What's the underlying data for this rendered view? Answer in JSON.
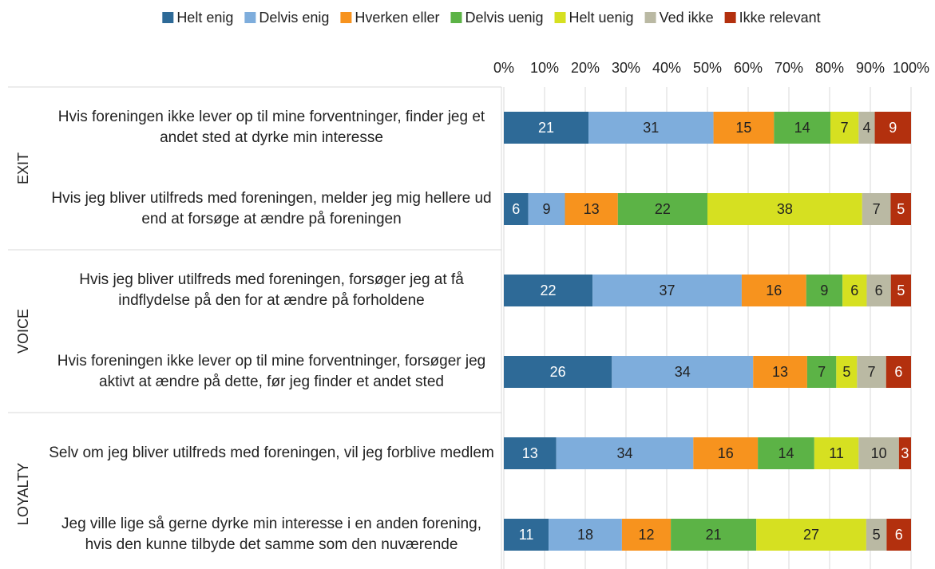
{
  "chart_data": {
    "type": "bar",
    "orientation": "horizontal",
    "stacking": "percent",
    "categories": [
      "Hvis foreningen ikke lever op til mine forventninger, finder jeg et andet sted at dyrke min interesse",
      "Hvis jeg bliver utilfreds med foreningen, melder jeg mig hellere ud end at forsøge at ændre på foreningen",
      "Hvis jeg bliver utilfreds med foreningen, forsøger jeg at få indflydelse på den for at ændre på forholdene",
      "Hvis foreningen ikke lever op til mine forventninger, forsøger jeg aktivt at ændre på dette, før jeg finder et andet sted",
      "Selv om jeg bliver utilfreds med foreningen, vil jeg forblive medlem",
      "Jeg ville lige så gerne dyrke min interesse i en anden forening, hvis den kunne tilbyde det samme som den nuværende"
    ],
    "groups": [
      {
        "label": "EXIT",
        "size": 2
      },
      {
        "label": "VOICE",
        "size": 2
      },
      {
        "label": "LOYALTY",
        "size": 2
      }
    ],
    "series": [
      {
        "name": "Helt enig",
        "color": "#2e6a97",
        "values": [
          21,
          6,
          22,
          26,
          13,
          11
        ]
      },
      {
        "name": "Delvis enig",
        "color": "#7eaddc",
        "values": [
          31,
          9,
          37,
          34,
          34,
          18
        ]
      },
      {
        "name": "Hverken eller",
        "color": "#f7931e",
        "values": [
          15,
          13,
          16,
          13,
          16,
          12
        ]
      },
      {
        "name": "Delvis uenig",
        "color": "#5cb346",
        "values": [
          14,
          22,
          9,
          7,
          14,
          21
        ]
      },
      {
        "name": "Helt uenig",
        "color": "#d6e021",
        "values": [
          7,
          38,
          6,
          5,
          11,
          27
        ]
      },
      {
        "name": "Ved ikke",
        "color": "#bab9a3",
        "values": [
          4,
          7,
          6,
          7,
          10,
          5
        ]
      },
      {
        "name": "Ikke relevant",
        "color": "#b3300e",
        "values": [
          9,
          5,
          5,
          6,
          3,
          6
        ]
      }
    ],
    "xlim": [
      0,
      100
    ],
    "xticks": [
      {
        "value": 0,
        "label": "0%"
      },
      {
        "value": 10,
        "label": "10%"
      },
      {
        "value": 20,
        "label": "20%"
      },
      {
        "value": 30,
        "label": "30%"
      },
      {
        "value": 40,
        "label": "40%"
      },
      {
        "value": 50,
        "label": "50%"
      },
      {
        "value": 60,
        "label": "60%"
      },
      {
        "value": 70,
        "label": "70%"
      },
      {
        "value": 80,
        "label": "80%"
      },
      {
        "value": 90,
        "label": "90%"
      },
      {
        "value": 100,
        "label": "100%"
      }
    ],
    "grid": true,
    "legend": "top"
  }
}
